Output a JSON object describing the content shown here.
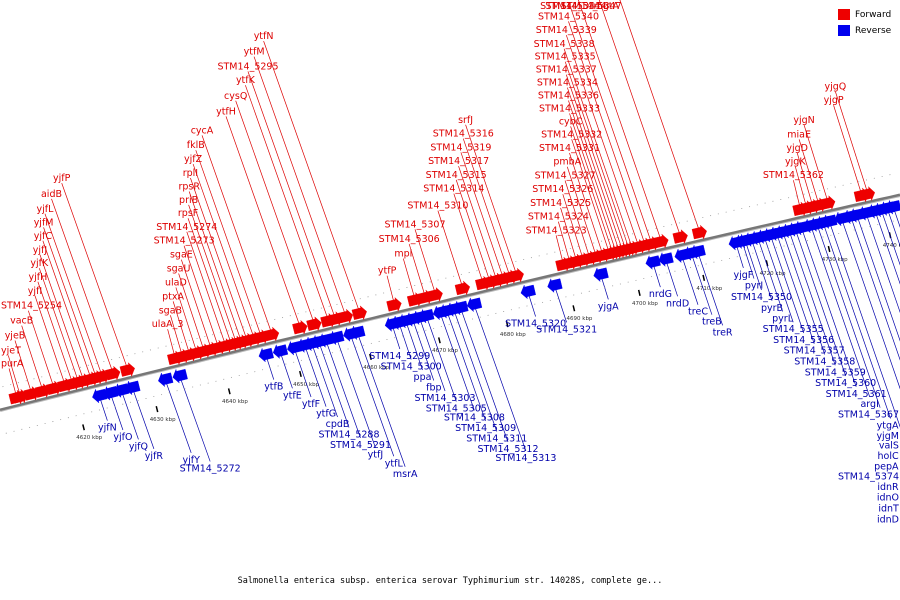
{
  "legend": {
    "forward": {
      "label": "Forward",
      "color": "#ee0000"
    },
    "reverse": {
      "label": "Reverse",
      "color": "#0000ee"
    }
  },
  "caption": "Salmonella enterica subsp. enterica serovar Typhimurium str. 14028S, complete ge...",
  "axis": {
    "unit": "kbp",
    "min": 4610,
    "max": 4743
  },
  "ticks": [
    {
      "kbp": 4620,
      "label": "4620 kbp"
    },
    {
      "kbp": 4630,
      "label": "4630 kbp"
    },
    {
      "kbp": 4640,
      "label": "4640 kbp"
    },
    {
      "kbp": 4650,
      "label": "4650 kbp"
    },
    {
      "kbp": 4660,
      "label": "4660 kbp"
    },
    {
      "kbp": 4670,
      "label": "4670 kbp"
    },
    {
      "kbp": 4680,
      "label": "4680 kbp"
    },
    {
      "kbp": 4690,
      "label": "4690 kbp"
    },
    {
      "kbp": 4700,
      "label": "4700 kbp"
    },
    {
      "kbp": 4710,
      "label": "4710 kbp"
    },
    {
      "kbp": 4720,
      "label": "4720 kbp"
    },
    {
      "kbp": 4730,
      "label": "4730 kbp"
    },
    {
      "kbp": 4740,
      "label": "4740 kbp"
    }
  ],
  "forward_genes": [
    {
      "name": "purA",
      "kbp": 4612.5
    },
    {
      "name": "yjeT",
      "kbp": 4613.0
    },
    {
      "name": "yjeB",
      "kbp": 4614.5
    },
    {
      "name": "vacB",
      "kbp": 4616.0
    },
    {
      "name": "STM14_5254",
      "kbp": 4617.5
    },
    {
      "name": "yjfI",
      "kbp": 4619.0
    },
    {
      "name": "yjfH",
      "kbp": 4620.0
    },
    {
      "name": "yjfK",
      "kbp": 4620.8
    },
    {
      "name": "yjfJ",
      "kbp": 4621.5
    },
    {
      "name": "yjfC",
      "kbp": 4622.5
    },
    {
      "name": "yjfM",
      "kbp": 4623.2
    },
    {
      "name": "yjfL",
      "kbp": 4624.0
    },
    {
      "name": "aidB",
      "kbp": 4625.5
    },
    {
      "name": "yjfP",
      "kbp": 4627.5
    },
    {
      "name": "ulaA_3",
      "kbp": 4634.0
    },
    {
      "name": "sgaB",
      "kbp": 4635.0
    },
    {
      "name": "ptxA",
      "kbp": 4636.0
    },
    {
      "name": "ulaD",
      "kbp": 4637.0
    },
    {
      "name": "sgaU",
      "kbp": 4638.0
    },
    {
      "name": "sgaE",
      "kbp": 4639.0
    },
    {
      "name": "STM14_5273",
      "kbp": 4640.0
    },
    {
      "name": "STM14_5274",
      "kbp": 4641.0
    },
    {
      "name": "rpsF",
      "kbp": 4641.8
    },
    {
      "name": "priB",
      "kbp": 4642.5
    },
    {
      "name": "rpsR",
      "kbp": 4643.2
    },
    {
      "name": "rplI",
      "kbp": 4644.0
    },
    {
      "name": "yjfZ",
      "kbp": 4645.0
    },
    {
      "name": "fklB",
      "kbp": 4646.0
    },
    {
      "name": "cycA",
      "kbp": 4647.5
    },
    {
      "name": "ytfH",
      "kbp": 4651.5
    },
    {
      "name": "cysQ",
      "kbp": 4653.5
    },
    {
      "name": "ytfK",
      "kbp": 4655.5
    },
    {
      "name": "STM14_5295",
      "kbp": 4656.5
    },
    {
      "name": "ytfM",
      "kbp": 4658.0
    },
    {
      "name": "ytfN",
      "kbp": 4660.0
    },
    {
      "name": "ytfP",
      "kbp": 4665.0
    },
    {
      "name": "mpl",
      "kbp": 4668.0
    },
    {
      "name": "STM14_5306",
      "kbp": 4669.5
    },
    {
      "name": "STM14_5307",
      "kbp": 4671.0
    },
    {
      "name": "STM14_5310",
      "kbp": 4675.0
    },
    {
      "name": "STM14_5314",
      "kbp": 4678.0
    },
    {
      "name": "STM14_5315",
      "kbp": 4679.0
    },
    {
      "name": "STM14_5317",
      "kbp": 4680.0
    },
    {
      "name": "STM14_5319",
      "kbp": 4681.0
    },
    {
      "name": "STM14_5316",
      "kbp": 4682.0
    },
    {
      "name": "srfJ",
      "kbp": 4683.0
    },
    {
      "name": "STM14_5323",
      "kbp": 4690.0
    },
    {
      "name": "STM14_5324",
      "kbp": 4691.0
    },
    {
      "name": "STM14_5325",
      "kbp": 4692.0
    },
    {
      "name": "STM14_5326",
      "kbp": 4693.0
    },
    {
      "name": "STM14_5327",
      "kbp": 4694.0
    },
    {
      "name": "pmbA",
      "kbp": 4695.0
    },
    {
      "name": "STM14_5331",
      "kbp": 4696.0
    },
    {
      "name": "STM14_5332",
      "kbp": 4697.0
    },
    {
      "name": "STM14_5333",
      "kbp": 4698.0
    },
    {
      "name": "STM14_5334",
      "kbp": 4699.0
    },
    {
      "name": "STM14_5335",
      "kbp": 4700.0
    },
    {
      "name": "cybC",
      "kbp": 4697.5
    },
    {
      "name": "STM14_5336",
      "kbp": 4698.5
    },
    {
      "name": "STM14_5337",
      "kbp": 4699.5
    },
    {
      "name": "STM14_5338",
      "kbp": 4700.5
    },
    {
      "name": "STM14_5339",
      "kbp": 4701.5
    },
    {
      "name": "STM14_5340",
      "kbp": 4702.5
    },
    {
      "name": "STM14_5341",
      "kbp": 4703.5
    },
    {
      "name": "STM14_5344",
      "kbp": 4705.0
    },
    {
      "name": "STM14_5347",
      "kbp": 4708.0
    },
    {
      "name": "mgtA",
      "kbp": 4711.0
    },
    {
      "name": "STM14_5362",
      "kbp": 4727.0
    },
    {
      "name": "yjgK",
      "kbp": 4728.0
    },
    {
      "name": "yjgD",
      "kbp": 4729.0
    },
    {
      "name": "miaE",
      "kbp": 4730.0
    },
    {
      "name": "yjgN",
      "kbp": 4731.5
    },
    {
      "name": "yjgP",
      "kbp": 4737.0
    },
    {
      "name": "yjgQ",
      "kbp": 4738.0
    }
  ],
  "reverse_genes": [
    {
      "name": "yjfN",
      "kbp": 4623.0
    },
    {
      "name": "yjfO",
      "kbp": 4624.5
    },
    {
      "name": "yjfQ",
      "kbp": 4626.0
    },
    {
      "name": "yjfR",
      "kbp": 4627.5
    },
    {
      "name": "yjfY",
      "kbp": 4632.0
    },
    {
      "name": "STM14_5272",
      "kbp": 4634.0
    },
    {
      "name": "ytfB",
      "kbp": 4646.0
    },
    {
      "name": "ytfE",
      "kbp": 4648.0
    },
    {
      "name": "ytfF",
      "kbp": 4650.0
    },
    {
      "name": "ytfG",
      "kbp": 4651.5
    },
    {
      "name": "cpdB",
      "kbp": 4652.5
    },
    {
      "name": "STM14_5288",
      "kbp": 4653.5
    },
    {
      "name": "STM14_5291",
      "kbp": 4654.5
    },
    {
      "name": "ytfJ",
      "kbp": 4656.0
    },
    {
      "name": "ytfL",
      "kbp": 4658.0
    },
    {
      "name": "msrA",
      "kbp": 4659.0
    },
    {
      "name": "STM14_5299",
      "kbp": 4664.0
    },
    {
      "name": "STM14_5300",
      "kbp": 4665.0
    },
    {
      "name": "ppa",
      "kbp": 4666.0
    },
    {
      "name": "fbp",
      "kbp": 4667.0
    },
    {
      "name": "STM14_5303",
      "kbp": 4668.0
    },
    {
      "name": "STM14_5305",
      "kbp": 4669.0
    },
    {
      "name": "STM14_5308",
      "kbp": 4671.0
    },
    {
      "name": "STM14_5309",
      "kbp": 4672.0
    },
    {
      "name": "STM14_5311",
      "kbp": 4673.0
    },
    {
      "name": "STM14_5312",
      "kbp": 4674.0
    },
    {
      "name": "STM14_5313",
      "kbp": 4676.0
    },
    {
      "name": "STM14_5320",
      "kbp": 4684.0
    },
    {
      "name": "STM14_5321",
      "kbp": 4688.0
    },
    {
      "name": "yjgA",
      "kbp": 4695.0
    },
    {
      "name": "nrdG",
      "kbp": 4703.0
    },
    {
      "name": "nrdD",
      "kbp": 4705.0
    },
    {
      "name": "treC",
      "kbp": 4707.5
    },
    {
      "name": "treB",
      "kbp": 4709.0
    },
    {
      "name": "treR",
      "kbp": 4710.0
    },
    {
      "name": "yjgF",
      "kbp": 4716.0
    },
    {
      "name": "pyrI",
      "kbp": 4717.0
    },
    {
      "name": "STM14_5350",
      "kbp": 4717.5
    },
    {
      "name": "pyrB",
      "kbp": 4718.5
    },
    {
      "name": "pyrL",
      "kbp": 4719.5
    },
    {
      "name": "STM14_5355",
      "kbp": 4720.5
    },
    {
      "name": "STM14_5356",
      "kbp": 4721.5
    },
    {
      "name": "STM14_5357",
      "kbp": 4722.5
    },
    {
      "name": "STM14_5358",
      "kbp": 4723.5
    },
    {
      "name": "STM14_5359",
      "kbp": 4724.5
    },
    {
      "name": "STM14_5360",
      "kbp": 4725.5
    },
    {
      "name": "STM14_5361",
      "kbp": 4726.5
    },
    {
      "name": "argI",
      "kbp": 4728.0
    },
    {
      "name": "STM14_5367",
      "kbp": 4729.0
    },
    {
      "name": "ytgA",
      "kbp": 4730.0
    },
    {
      "name": "yjgM",
      "kbp": 4731.0
    },
    {
      "name": "valS",
      "kbp": 4733.0
    },
    {
      "name": "holC",
      "kbp": 4734.5
    },
    {
      "name": "pepA",
      "kbp": 4735.5
    },
    {
      "name": "STM14_5374",
      "kbp": 4737.0
    },
    {
      "name": "idnR",
      "kbp": 4738.5
    },
    {
      "name": "idnO",
      "kbp": 4739.5
    },
    {
      "name": "idnT",
      "kbp": 4740.5
    },
    {
      "name": "idnD",
      "kbp": 4741.5
    }
  ]
}
